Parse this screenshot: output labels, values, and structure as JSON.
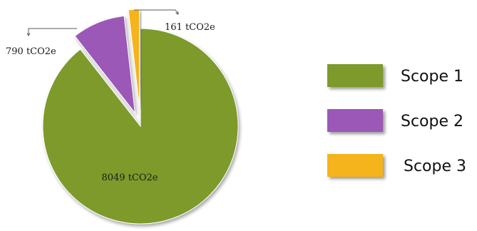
{
  "chart_data": {
    "type": "pie",
    "unit": "tCO2e",
    "legend_position": "right",
    "series": [
      {
        "name": "Scope 1",
        "value": 8049,
        "label": "8049 tCO2e",
        "color": "#7d9a2c"
      },
      {
        "name": "Scope 2",
        "value": 790,
        "label": "790 tCO2e",
        "color": "#9b59b6"
      },
      {
        "name": "Scope 3",
        "value": 161,
        "label": "161 tCO2e",
        "color": "#f5b31c"
      }
    ]
  }
}
